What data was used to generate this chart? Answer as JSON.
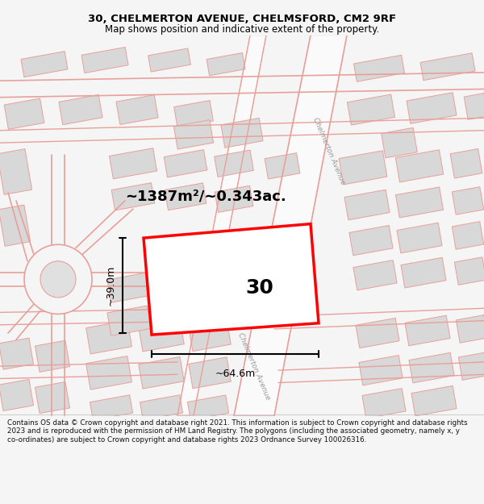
{
  "title_line1": "30, CHELMERTON AVENUE, CHELMSFORD, CM2 9RF",
  "title_line2": "Map shows position and indicative extent of the property.",
  "area_text": "~1387m²/~0.343ac.",
  "property_number": "30",
  "width_label": "~64.6m",
  "height_label": "~39.0m",
  "bg_color": "#f5f5f5",
  "map_bg": "#ffffff",
  "footer_text": "Contains OS data © Crown copyright and database right 2021. This information is subject to Crown copyright and database rights 2023 and is reproduced with the permission of HM Land Registry. The polygons (including the associated geometry, namely x, y co-ordinates) are subject to Crown copyright and database rights 2023 Ordnance Survey 100026316.",
  "road_color": "#e8a09a",
  "building_fill": "#d8d8d8",
  "building_stroke": "#e8a09a",
  "highlight_fill": "#ffffff",
  "highlight_stroke": "#ff0000",
  "road_label1": "Chelmerton Avenue",
  "road_label2": "Chelmerton Avenue"
}
